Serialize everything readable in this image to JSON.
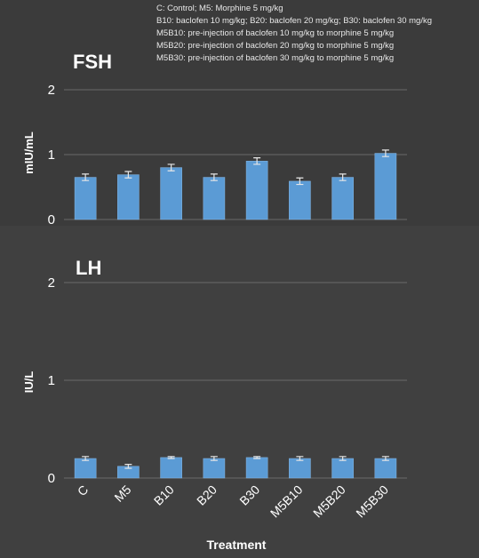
{
  "legend_lines": [
    "C: Control; M5: Morphine 5 mg/kg",
    "B10: baclofen 10 mg/kg; B20: baclofen 20 mg/kg; B30: baclofen 30 mg/kg",
    "M5B10: pre-injection of baclofen 10 mg/kg to morphine 5 mg/kg",
    "M5B20: pre-injection of baclofen 20 mg/kg to morphine 5 mg/kg",
    "M5B30: pre-injection of baclofen 30 mg/kg to morphine 5 mg/kg"
  ],
  "colors": {
    "background_top": "#3b3b3b",
    "background_bottom": "#404040",
    "bar": "#5b9bd5",
    "bar_edge": "#86b8e6",
    "grid": "#6a6a6a",
    "text": "#ffffff"
  },
  "chart_data": [
    {
      "type": "bar",
      "title": "FSH",
      "ylabel": "mIU/mL",
      "xlabel": "",
      "categories": [
        "C",
        "M5",
        "B10",
        "B20",
        "B30",
        "M5B10",
        "M5B20",
        "M5B30"
      ],
      "values": [
        0.65,
        0.69,
        0.8,
        0.65,
        0.9,
        0.59,
        0.65,
        1.02
      ],
      "errors": [
        0.05,
        0.05,
        0.05,
        0.05,
        0.05,
        0.05,
        0.05,
        0.05
      ],
      "ylim": [
        0,
        2
      ],
      "yticks": [
        0,
        1,
        2
      ],
      "grid": true
    },
    {
      "type": "bar",
      "title": "LH",
      "ylabel": "IU/L",
      "xlabel": "Treatment",
      "categories": [
        "C",
        "M5",
        "B10",
        "B20",
        "B30",
        "M5B10",
        "M5B20",
        "M5B30"
      ],
      "values": [
        0.2,
        0.12,
        0.21,
        0.2,
        0.21,
        0.2,
        0.2,
        0.2
      ],
      "errors": [
        0.02,
        0.02,
        0.01,
        0.02,
        0.01,
        0.02,
        0.02,
        0.02
      ],
      "ylim": [
        0,
        2
      ],
      "yticks": [
        0,
        1,
        2
      ],
      "grid": true
    }
  ]
}
